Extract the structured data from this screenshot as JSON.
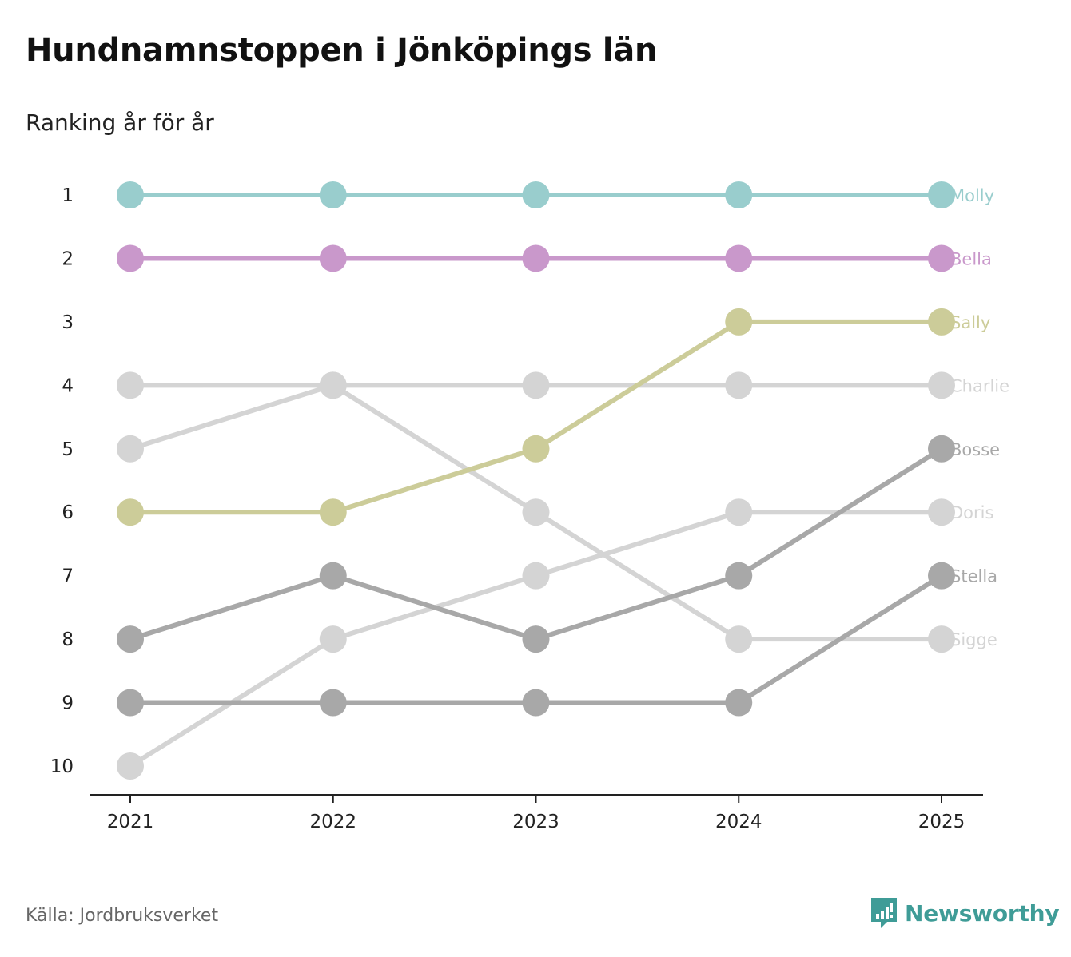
{
  "header": {
    "title": "Hundnamnstoppen i Jönköpings län",
    "subtitle": "Ranking år för år"
  },
  "footer": {
    "source": "Källa: Jordbruksverket",
    "brand": "Newsworthy",
    "brand_icon": "newsworthy-logo-icon",
    "brand_color": "#3f9c97"
  },
  "chart_data": {
    "type": "line",
    "title": "Hundnamnstoppen i Jönköpings län",
    "subtitle": "Ranking år för år",
    "xlabel": "",
    "ylabel": "",
    "x": [
      "2021",
      "2022",
      "2023",
      "2024",
      "2025"
    ],
    "y_ticks": [
      "1",
      "2",
      "3",
      "4",
      "5",
      "6",
      "7",
      "8",
      "9",
      "10"
    ],
    "ylim": [
      1,
      10
    ],
    "y_inverted": true,
    "grid": false,
    "legend": "end-labels-right",
    "series": [
      {
        "name": "Molly",
        "color": "#99cdcd",
        "values": [
          1,
          1,
          1,
          1,
          1
        ]
      },
      {
        "name": "Bella",
        "color": "#c998cb",
        "values": [
          2,
          2,
          2,
          2,
          2
        ]
      },
      {
        "name": "Sally",
        "color": "#cccc99",
        "values": [
          6,
          6,
          5,
          3,
          3
        ]
      },
      {
        "name": "Charlie",
        "color": "#d4d4d4",
        "values": [
          4,
          4,
          4,
          4,
          4
        ]
      },
      {
        "name": "Bosse",
        "color": "#a8a8a8",
        "values": [
          8,
          7,
          8,
          7,
          5
        ]
      },
      {
        "name": "Doris",
        "color": "#d4d4d4",
        "values": [
          10,
          8,
          7,
          6,
          6
        ]
      },
      {
        "name": "Stella",
        "color": "#a8a8a8",
        "values": [
          9,
          9,
          9,
          9,
          7
        ]
      },
      {
        "name": "Sigge",
        "color": "#d4d4d4",
        "values": [
          5,
          4,
          6,
          8,
          8
        ]
      }
    ]
  }
}
